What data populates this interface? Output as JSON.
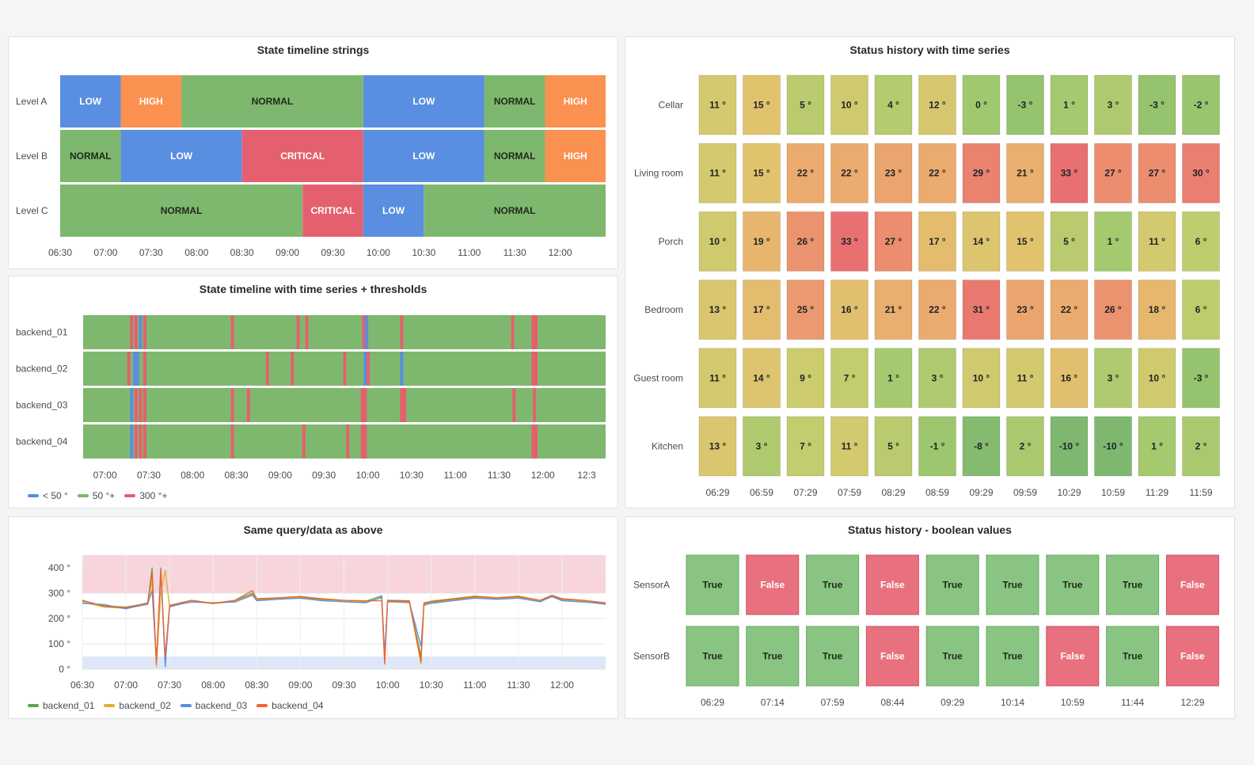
{
  "colors": {
    "green": "#7eb86f",
    "blue": "#5a8ee0",
    "red": "#e5606e",
    "orange": "#fa9150",
    "line1": "#5aa64b",
    "line2": "#e0b12d",
    "line3": "#5a8ee0",
    "line4": "#f2622f",
    "threshold_high_band": "#f7d5da",
    "threshold_low_band": "#dde7f7"
  },
  "panels": {
    "p1": {
      "title": "State timeline strings",
      "rows": [
        {
          "label": "Level A",
          "segments": [
            {
              "start": "06:30",
              "end": "07:10",
              "state": "LOW"
            },
            {
              "start": "07:10",
              "end": "07:50",
              "state": "HIGH"
            },
            {
              "start": "07:50",
              "end": "09:50",
              "state": "NORMAL"
            },
            {
              "start": "09:50",
              "end": "11:10",
              "state": "LOW"
            },
            {
              "start": "11:10",
              "end": "11:50",
              "state": "NORMAL"
            },
            {
              "start": "11:50",
              "end": "12:30",
              "state": "HIGH"
            }
          ]
        },
        {
          "label": "Level B",
          "segments": [
            {
              "start": "06:30",
              "end": "07:10",
              "state": "NORMAL"
            },
            {
              "start": "07:10",
              "end": "08:30",
              "state": "LOW"
            },
            {
              "start": "08:30",
              "end": "09:50",
              "state": "CRITICAL"
            },
            {
              "start": "09:50",
              "end": "11:10",
              "state": "LOW"
            },
            {
              "start": "11:10",
              "end": "11:50",
              "state": "NORMAL"
            },
            {
              "start": "11:50",
              "end": "12:30",
              "state": "HIGH"
            }
          ]
        },
        {
          "label": "Level C",
          "segments": [
            {
              "start": "06:30",
              "end": "09:10",
              "state": "NORMAL"
            },
            {
              "start": "09:10",
              "end": "09:50",
              "state": "CRITICAL"
            },
            {
              "start": "09:50",
              "end": "10:30",
              "state": "LOW"
            },
            {
              "start": "10:30",
              "end": "12:30",
              "state": "NORMAL"
            }
          ]
        }
      ],
      "state_colors": {
        "LOW": "#5a8ee0",
        "HIGH": "#fa9150",
        "NORMAL": "#7eb86f",
        "CRITICAL": "#e5606e"
      },
      "x_ticks": [
        "06:30",
        "07:00",
        "07:30",
        "08:00",
        "08:30",
        "09:00",
        "09:30",
        "10:00",
        "10:30",
        "11:00",
        "11:30",
        "12:00"
      ]
    },
    "p2": {
      "title": "State timeline with time series + thresholds",
      "rows": [
        {
          "label": "backend_01",
          "events": [
            {
              "t": "07:18",
              "state": "300"
            },
            {
              "t": "07:21",
              "state": "300"
            },
            {
              "t": "07:24",
              "state": "50"
            },
            {
              "t": "07:27",
              "state": "300"
            },
            {
              "t": "08:27",
              "state": "300"
            },
            {
              "t": "09:12",
              "state": "300"
            },
            {
              "t": "09:18",
              "state": "300"
            },
            {
              "t": "09:57",
              "state": "300"
            },
            {
              "t": "09:59",
              "state": "50"
            },
            {
              "t": "10:23",
              "state": "300"
            },
            {
              "t": "11:39",
              "state": "300"
            },
            {
              "t": "11:53",
              "state": "300"
            },
            {
              "t": "11:55",
              "state": "300"
            }
          ]
        },
        {
          "label": "backend_02",
          "events": [
            {
              "t": "07:16",
              "state": "300"
            },
            {
              "t": "07:20",
              "state": "50"
            },
            {
              "t": "07:22",
              "state": "50"
            },
            {
              "t": "07:27",
              "state": "300"
            },
            {
              "t": "08:51",
              "state": "300"
            },
            {
              "t": "09:08",
              "state": "300"
            },
            {
              "t": "09:44",
              "state": "300"
            },
            {
              "t": "09:58",
              "state": "50"
            },
            {
              "t": "10:00",
              "state": "300"
            },
            {
              "t": "10:23",
              "state": "50"
            },
            {
              "t": "11:53",
              "state": "300"
            },
            {
              "t": "11:55",
              "state": "300"
            }
          ]
        },
        {
          "label": "backend_03",
          "events": [
            {
              "t": "07:18",
              "state": "50"
            },
            {
              "t": "07:21",
              "state": "300"
            },
            {
              "t": "07:24",
              "state": "300"
            },
            {
              "t": "07:27",
              "state": "300"
            },
            {
              "t": "08:27",
              "state": "300"
            },
            {
              "t": "08:38",
              "state": "300"
            },
            {
              "t": "09:56",
              "state": "300"
            },
            {
              "t": "09:58",
              "state": "300"
            },
            {
              "t": "10:23",
              "state": "300"
            },
            {
              "t": "10:25",
              "state": "300"
            },
            {
              "t": "11:40",
              "state": "300"
            },
            {
              "t": "11:54",
              "state": "300"
            }
          ]
        },
        {
          "label": "backend_04",
          "events": [
            {
              "t": "07:18",
              "state": "50"
            },
            {
              "t": "07:21",
              "state": "300"
            },
            {
              "t": "07:24",
              "state": "300"
            },
            {
              "t": "07:27",
              "state": "300"
            },
            {
              "t": "08:27",
              "state": "300"
            },
            {
              "t": "09:16",
              "state": "300"
            },
            {
              "t": "09:46",
              "state": "300"
            },
            {
              "t": "09:56",
              "state": "300"
            },
            {
              "t": "09:58",
              "state": "300"
            },
            {
              "t": "11:53",
              "state": "300"
            },
            {
              "t": "11:55",
              "state": "300"
            }
          ]
        }
      ],
      "state_colors": {
        "50": "#5a8ee0",
        "300": "#e5606e",
        "base": "#7eb86f"
      },
      "x_ticks": [
        "07:00",
        "07:30",
        "08:00",
        "08:30",
        "09:00",
        "09:30",
        "10:00",
        "10:30",
        "11:00",
        "11:30",
        "12:00",
        "12:3"
      ],
      "legend": [
        {
          "label": "< 50 °",
          "color": "#5a8ee0"
        },
        {
          "label": "50 °+",
          "color": "#7eb86f"
        },
        {
          "label": "300 °+",
          "color": "#e5606e"
        }
      ]
    },
    "p3": {
      "title": "Same query/data as above",
      "y_ticks": [
        "400 °",
        "300 °",
        "200 °",
        "100 °",
        "0 °"
      ],
      "x_ticks": [
        "06:30",
        "07:00",
        "07:30",
        "08:00",
        "08:30",
        "09:00",
        "09:30",
        "10:00",
        "10:30",
        "11:00",
        "11:30",
        "12:00"
      ],
      "legend": [
        {
          "label": "backend_01",
          "color": "#5aa64b"
        },
        {
          "label": "backend_02",
          "color": "#e0b12d"
        },
        {
          "label": "backend_03",
          "color": "#5a8ee0"
        },
        {
          "label": "backend_04",
          "color": "#f2622f"
        }
      ]
    },
    "p4": {
      "title": "Status history with time series",
      "rows": [
        {
          "label": "Cellar",
          "values": [
            11,
            15,
            5,
            10,
            4,
            12,
            0,
            -3,
            1,
            3,
            -3,
            -2
          ]
        },
        {
          "label": "Living room",
          "values": [
            11,
            15,
            22,
            22,
            23,
            22,
            29,
            21,
            33,
            27,
            27,
            30
          ]
        },
        {
          "label": "Porch",
          "values": [
            10,
            19,
            26,
            33,
            27,
            17,
            14,
            15,
            5,
            1,
            11,
            6
          ]
        },
        {
          "label": "Bedroom",
          "values": [
            13,
            17,
            25,
            16,
            21,
            22,
            31,
            23,
            22,
            26,
            18,
            6
          ]
        },
        {
          "label": "Guest room",
          "values": [
            11,
            14,
            9,
            7,
            1,
            3,
            10,
            11,
            16,
            3,
            10,
            -3
          ]
        },
        {
          "label": "Kitchen",
          "values": [
            13,
            3,
            7,
            11,
            5,
            -1,
            -8,
            2,
            -10,
            -10,
            1,
            2
          ]
        }
      ],
      "unit": " °",
      "x_ticks": [
        "06:29",
        "06:59",
        "07:29",
        "07:59",
        "08:29",
        "08:59",
        "09:29",
        "09:59",
        "10:29",
        "10:59",
        "11:29",
        "11:59"
      ]
    },
    "p5": {
      "title": "Status history - boolean values",
      "rows": [
        {
          "label": "SensorA",
          "values": [
            "True",
            "False",
            "True",
            "False",
            "True",
            "True",
            "True",
            "True",
            "False"
          ]
        },
        {
          "label": "SensorB",
          "values": [
            "True",
            "True",
            "True",
            "False",
            "True",
            "True",
            "False",
            "True",
            "False"
          ]
        }
      ],
      "x_ticks": [
        "06:29",
        "07:14",
        "07:59",
        "08:44",
        "09:29",
        "10:14",
        "10:59",
        "11:44",
        "12:29"
      ]
    }
  },
  "chart_data": [
    {
      "type": "heatmap",
      "title": "Status history with time series",
      "categories": [
        "06:29",
        "06:59",
        "07:29",
        "07:59",
        "08:29",
        "08:59",
        "09:29",
        "09:59",
        "10:29",
        "10:59",
        "11:29",
        "11:59"
      ],
      "series": [
        {
          "name": "Cellar",
          "values": [
            11,
            15,
            5,
            10,
            4,
            12,
            0,
            -3,
            1,
            3,
            -3,
            -2
          ]
        },
        {
          "name": "Living room",
          "values": [
            11,
            15,
            22,
            22,
            23,
            22,
            29,
            21,
            33,
            27,
            27,
            30
          ]
        },
        {
          "name": "Porch",
          "values": [
            10,
            19,
            26,
            33,
            27,
            17,
            14,
            15,
            5,
            1,
            11,
            6
          ]
        },
        {
          "name": "Bedroom",
          "values": [
            13,
            17,
            25,
            16,
            21,
            22,
            31,
            23,
            22,
            26,
            18,
            6
          ]
        },
        {
          "name": "Guest room",
          "values": [
            11,
            14,
            9,
            7,
            1,
            3,
            10,
            11,
            16,
            3,
            10,
            -3
          ]
        },
        {
          "name": "Kitchen",
          "values": [
            13,
            3,
            7,
            11,
            5,
            -1,
            -8,
            2,
            -10,
            -10,
            1,
            2
          ]
        }
      ]
    },
    {
      "type": "line",
      "title": "Same query/data as above",
      "ylim": [
        0,
        400
      ],
      "x": [
        "06:30",
        "06:45",
        "07:00",
        "07:15",
        "07:18",
        "07:21",
        "07:24",
        "07:27",
        "07:30",
        "07:45",
        "08:00",
        "08:15",
        "08:27",
        "08:30",
        "08:45",
        "09:00",
        "09:15",
        "09:30",
        "09:45",
        "09:56",
        "09:58",
        "10:00",
        "10:15",
        "10:23",
        "10:25",
        "10:30",
        "10:45",
        "11:00",
        "11:15",
        "11:30",
        "11:45",
        "11:53",
        "12:00",
        "12:15",
        "12:30"
      ],
      "series": [
        {
          "name": "backend_01",
          "values": [
            270,
            250,
            245,
            260,
            400,
            20,
            380,
            30,
            250,
            270,
            260,
            270,
            300,
            275,
            280,
            285,
            275,
            270,
            268,
            290,
            40,
            270,
            268,
            50,
            260,
            265,
            275,
            285,
            280,
            285,
            270,
            290,
            275,
            270,
            260
          ]
        },
        {
          "name": "backend_02",
          "values": [
            265,
            245,
            240,
            255,
            350,
            10,
            300,
            390,
            245,
            268,
            258,
            268,
            295,
            272,
            278,
            282,
            272,
            268,
            265,
            280,
            30,
            265,
            262,
            20,
            250,
            262,
            272,
            282,
            278,
            282,
            268,
            285,
            272,
            268,
            255
          ]
        },
        {
          "name": "backend_03",
          "values": [
            260,
            255,
            238,
            258,
            310,
            30,
            400,
            10,
            248,
            265,
            262,
            265,
            292,
            270,
            276,
            280,
            270,
            266,
            262,
            285,
            60,
            268,
            265,
            90,
            255,
            260,
            270,
            280,
            276,
            280,
            266,
            288,
            270,
            265,
            258
          ]
        },
        {
          "name": "backend_04",
          "values": [
            272,
            248,
            242,
            262,
            380,
            20,
            395,
            50,
            252,
            272,
            260,
            272,
            310,
            278,
            282,
            287,
            278,
            272,
            270,
            270,
            20,
            272,
            270,
            30,
            262,
            268,
            278,
            288,
            282,
            288,
            272,
            292,
            278,
            272,
            262
          ]
        }
      ]
    }
  ]
}
